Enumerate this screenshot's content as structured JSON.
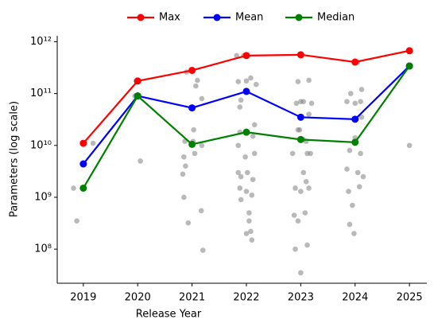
{
  "chart_data": {
    "type": "line",
    "xlabel": "Release Year",
    "ylabel": "Parameters (log scale)",
    "x": [
      2019,
      2020,
      2021,
      2022,
      2023,
      2024,
      2025
    ],
    "series": [
      {
        "name": "Max",
        "color": "#ff0000",
        "values": [
          11000000000.0,
          175000000000.0,
          280000000000.0,
          540000000000.0,
          560000000000.0,
          405000000000.0,
          670000000000.0
        ]
      },
      {
        "name": "Mean",
        "color": "#0000ff",
        "values": [
          4400000000.0,
          90000000000.0,
          53000000000.0,
          110000000000.0,
          35000000000.0,
          32000000000.0,
          340000000000.0
        ]
      },
      {
        "name": "Median",
        "color": "#008000",
        "values": [
          1500000000.0,
          90000000000.0,
          10500000000.0,
          18000000000.0,
          13000000000.0,
          11500000000.0,
          340000000000.0
        ]
      }
    ],
    "scatter": {
      "type": "scatter",
      "color": "#808080",
      "x": [
        2018.82,
        2018.88,
        2019.18,
        2019.97,
        2020.05,
        2019.95,
        2020.87,
        2020.85,
        2020.88,
        2020.83,
        2020.85,
        2020.93,
        2021.03,
        2021.02,
        2021.05,
        2021.1,
        2021.07,
        2021.18,
        2021.18,
        2021.17,
        2021.2,
        2020.9,
        2021.82,
        2021.85,
        2021.88,
        2021.9,
        2021.85,
        2021.88,
        2021.85,
        2021.9,
        2021.88,
        2021.9,
        2022.0,
        2021.98,
        2022.02,
        2022.0,
        2022.05,
        2022.0,
        2022.08,
        2022.1,
        2022.12,
        2022.15,
        2022.12,
        2022.18,
        2022.15,
        2022.05,
        2022.1,
        2021.95,
        2022.08,
        2022.85,
        2022.88,
        2022.9,
        2022.92,
        2022.95,
        2022.98,
        2022.9,
        2022.95,
        2023.0,
        2023.0,
        2023.02,
        2023.05,
        2023.05,
        2023.08,
        2023.1,
        2023.12,
        2023.12,
        2023.15,
        2023.15,
        2023.18,
        2023.1,
        2023.2,
        2023.0,
        2022.95,
        2023.05,
        2023.15,
        2023.85,
        2023.88,
        2023.9,
        2023.85,
        2023.92,
        2023.9,
        2023.95,
        2023.98,
        2024.0,
        2024.0,
        2024.05,
        2024.08,
        2024.1,
        2024.12,
        2024.12,
        2024.15,
        2024.05,
        2024.1,
        2025.0,
        2025.0
      ],
      "y": [
        1500000000.0,
        350000000.0,
        11000000000.0,
        175000000000.0,
        5000000000.0,
        90000000000.0,
        12000000000.0,
        6000000000.0,
        4000000000.0,
        2800000000.0,
        1000000000.0,
        320000000.0,
        20000000000.0,
        12000000000.0,
        7000000000.0,
        180000000000.0,
        140000000000.0,
        80000000000.0,
        10000000000.0,
        550000000.0,
        95000000.0,
        260000000000.0,
        540000000000.0,
        170000000000.0,
        55000000000.0,
        75000000000.0,
        10000000000.0,
        18000000000.0,
        3000000000.0,
        2500000000.0,
        1500000000.0,
        900000000.0,
        175000000000.0,
        6000000000.0,
        3000000000.0,
        1300000000.0,
        500000000.0,
        200000000.0,
        220000000.0,
        1100000000.0,
        15000000000.0,
        7000000000.0,
        2200000000.0,
        150000000000.0,
        25000000000.0,
        350000000.0,
        150000000.0,
        540000000000.0,
        200000000000.0,
        7000000000.0,
        450000000.0,
        1500000000.0,
        65000000000.0,
        170000000000.0,
        20000000000.0,
        100000000.0,
        350000000.0,
        35000000.0,
        70000000000.0,
        550000000000.0,
        13000000000.0,
        3000000000.0,
        500000000.0,
        12000000000.0,
        7000000000.0,
        120000000.0,
        40000000000.0,
        180000000000.0,
        7000000000.0,
        2000000000.0,
        65000000000.0,
        1300000000.0,
        20000000000.0,
        70000000000.0,
        1500000000.0,
        3500000000.0,
        1300000000.0,
        300000000.0,
        70000000000.0,
        100000000000.0,
        8000000000.0,
        700000000.0,
        200000000.0,
        14000000000.0,
        65000000000.0,
        3000000000.0,
        1600000000.0,
        7000000000.0,
        120000000000.0,
        35000000000.0,
        2500000000.0,
        405000000000.0,
        70000000000.0,
        340000000000.0,
        10000000000.0
      ]
    },
    "xlim": [
      2018.52,
      2025.32
    ],
    "xticks": [
      2019,
      2020,
      2021,
      2022,
      2023,
      2024,
      2025
    ],
    "ylim": [
      22000000.0,
      1300000000000.0
    ],
    "yscale": "log",
    "yticks": [
      {
        "value": 100000000.0,
        "label": "10⁸"
      },
      {
        "value": 1000000000.0,
        "label": "10⁹"
      },
      {
        "value": 10000000000.0,
        "label": "10¹⁰"
      },
      {
        "value": 100000000000.0,
        "label": "10¹¹"
      },
      {
        "value": 1000000000000.0,
        "label": "10¹²"
      }
    ],
    "legend": "top"
  }
}
